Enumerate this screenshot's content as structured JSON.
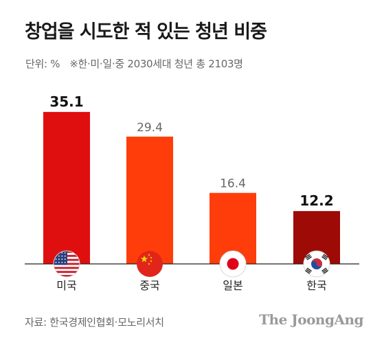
{
  "title": "창업을 시도한 적 있는 청년 비중",
  "unit_label": "단위: %",
  "note": "※한·미·일·중 2030세대 청년 총 2103명",
  "source": "자료: 한국경제인협회·모노리서치",
  "brand": "The JoongAng",
  "chart_data": {
    "type": "bar",
    "title": "창업을 시도한 적 있는 청년 비중",
    "categories": [
      "미국",
      "중국",
      "일본",
      "한국"
    ],
    "values": [
      35.1,
      29.4,
      16.4,
      12.2
    ],
    "value_labels": [
      "35.1",
      "29.4",
      "16.4",
      "12.2"
    ],
    "bold_labels": [
      true,
      false,
      false,
      true
    ],
    "bar_colors": [
      "#e00f0f",
      "#ff3d0a",
      "#ff3d0a",
      "#9e0a05"
    ],
    "label_colors": [
      "#111111",
      "#666666",
      "#666666",
      "#111111"
    ],
    "flag_icons": [
      "usa-flag-icon",
      "china-flag-icon",
      "japan-flag-icon",
      "korea-flag-icon"
    ],
    "ylim": [
      0,
      40
    ],
    "grid": false,
    "xlabel": "",
    "ylabel": ""
  }
}
